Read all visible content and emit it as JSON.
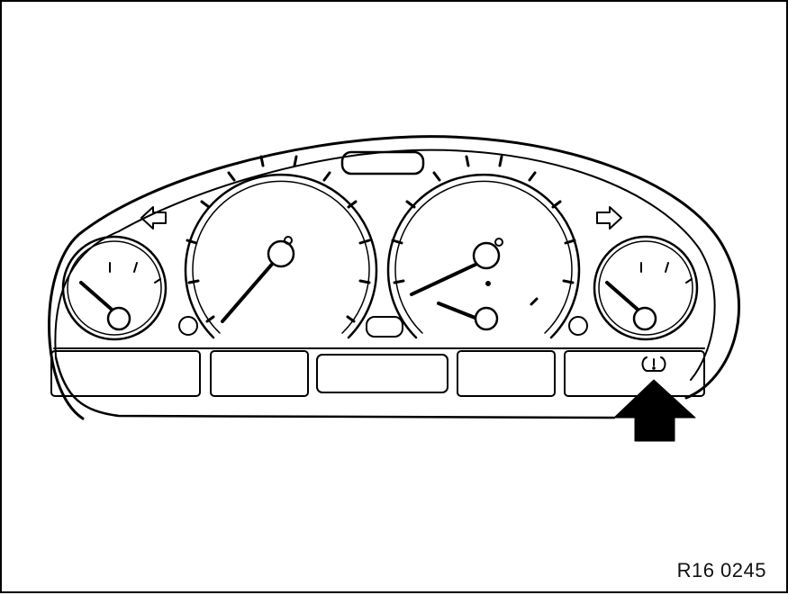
{
  "figure": {
    "reference_code": "R16 0245",
    "subject": "instrument-cluster",
    "indicated_element": "tire-pressure-warning-symbol"
  },
  "icons": {
    "arrow": "arrow-up-icon",
    "turn_left": "turn-signal-left-icon",
    "turn_right": "turn-signal-right-icon"
  }
}
